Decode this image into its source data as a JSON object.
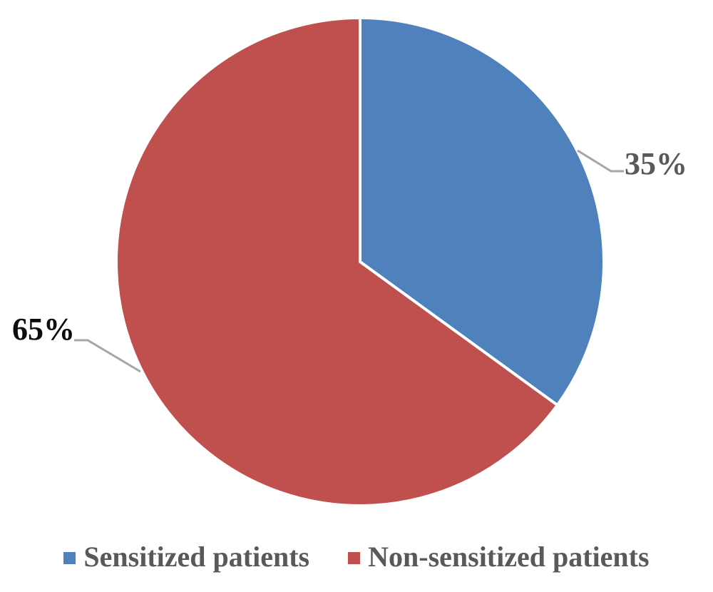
{
  "chart_data": {
    "type": "pie",
    "title": "",
    "slices": [
      {
        "id": "sensitized",
        "label": "Sensitized patients",
        "value": 35,
        "percent_label": "35%",
        "color": "#4F81BD",
        "percent_label_color": "#595959"
      },
      {
        "id": "non-sensitized",
        "label": "Non-sensitized patients",
        "value": 65,
        "percent_label": "65%",
        "color": "#C0504D",
        "percent_label_color": "#0D0D0D"
      }
    ],
    "start_angle_deg": 0,
    "direction": "clockwise",
    "slice_border_color": "#FFFFFF",
    "leader_line_color": "#A6A6A6",
    "data_labels_position": "outside-end-with-leader-lines",
    "legend_position": "bottom",
    "legend_text_color": "#595959",
    "background_color": "#FFFFFF"
  }
}
